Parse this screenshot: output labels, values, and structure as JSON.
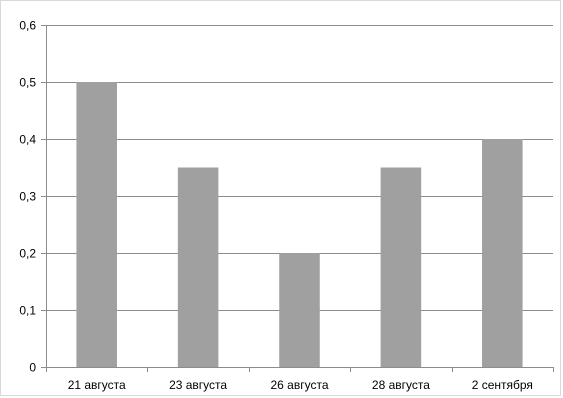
{
  "chart_data": {
    "type": "bar",
    "categories": [
      "21 августа",
      "23 августа",
      "26 августа",
      "28 августа",
      "2 сентября"
    ],
    "values": [
      0.5,
      0.35,
      0.2,
      0.35,
      0.4
    ],
    "yticks": [
      "0",
      "0,1",
      "0,2",
      "0,3",
      "0,4",
      "0,5",
      "0,6"
    ],
    "ylim": [
      0,
      0.6
    ],
    "grid": true,
    "legend": "none",
    "bar_color": "#a0a0a0",
    "grid_color": "#8c8c8c",
    "axis_color": "#8c8c8c"
  }
}
